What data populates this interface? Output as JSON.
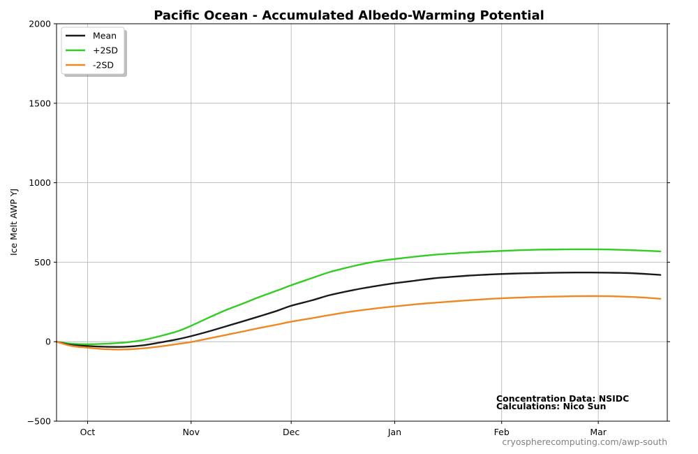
{
  "chart_data": {
    "type": "line",
    "title": "Pacific Ocean - Accumulated Albedo-Warming Potential",
    "ylabel": "Ice Melt AWP  YJ",
    "xlabel": "",
    "ylim": [
      -500,
      2000
    ],
    "yticks": [
      -500,
      0,
      500,
      1000,
      1500,
      2000
    ],
    "ytick_labels": [
      "−500",
      "0",
      "500",
      "1000",
      "1500",
      "2000"
    ],
    "x_unit": "day of season (0 = late September)",
    "xlim": [
      0,
      177
    ],
    "xticks": [
      9,
      39,
      68,
      98,
      129,
      157
    ],
    "xtick_labels": [
      "Oct",
      "Nov",
      "Dec",
      "Jan",
      "Feb",
      "Mar"
    ],
    "grid": true,
    "legend_position": "top-left",
    "series": [
      {
        "name": "Mean",
        "color": "#1a1a1a",
        "x": [
          0,
          4,
          9,
          14,
          20,
          25,
          30,
          35,
          39,
          44,
          49,
          54,
          59,
          64,
          68,
          74,
          79,
          84,
          89,
          94,
          98,
          104,
          109,
          114,
          119,
          124,
          129,
          135,
          140,
          145,
          150,
          155,
          160,
          165,
          170,
          175
        ],
        "y": [
          0,
          -20,
          -27,
          -32,
          -32,
          -23,
          -5,
          15,
          35,
          64,
          96,
          128,
          161,
          195,
          226,
          260,
          292,
          316,
          337,
          355,
          368,
          384,
          398,
          407,
          415,
          421,
          426,
          430,
          432,
          434,
          435,
          435,
          434,
          432,
          427,
          420
        ]
      },
      {
        "name": "+2SD",
        "color": "#33cc22",
        "x": [
          0,
          4,
          9,
          14,
          20,
          25,
          30,
          35,
          39,
          44,
          49,
          54,
          59,
          64,
          68,
          74,
          79,
          84,
          89,
          94,
          98,
          104,
          109,
          114,
          119,
          124,
          129,
          135,
          140,
          145,
          150,
          155,
          160,
          165,
          170,
          175
        ],
        "y": [
          0,
          -12,
          -16,
          -13,
          -5,
          10,
          35,
          65,
          100,
          150,
          198,
          240,
          283,
          322,
          355,
          400,
          437,
          465,
          490,
          509,
          520,
          535,
          546,
          554,
          561,
          566,
          571,
          576,
          579,
          580,
          581,
          581,
          580,
          577,
          573,
          568
        ]
      },
      {
        "name": "-2SD",
        "color": "#ee8822",
        "x": [
          0,
          4,
          9,
          14,
          20,
          25,
          30,
          35,
          39,
          44,
          49,
          54,
          59,
          64,
          68,
          74,
          79,
          84,
          89,
          94,
          98,
          104,
          109,
          114,
          119,
          124,
          129,
          135,
          140,
          145,
          150,
          155,
          160,
          165,
          170,
          175
        ],
        "y": [
          0,
          -25,
          -38,
          -47,
          -49,
          -42,
          -30,
          -15,
          -2,
          20,
          42,
          64,
          87,
          108,
          126,
          148,
          167,
          185,
          200,
          213,
          222,
          235,
          244,
          252,
          260,
          267,
          273,
          278,
          282,
          284,
          286,
          287,
          286,
          283,
          278,
          270
        ]
      }
    ],
    "annotations": {
      "credit_line1": "Concentration Data: NSIDC",
      "credit_line2": "Calculations: Nico Sun",
      "source_url": "cryospherecomputing.com/awp-south"
    }
  }
}
